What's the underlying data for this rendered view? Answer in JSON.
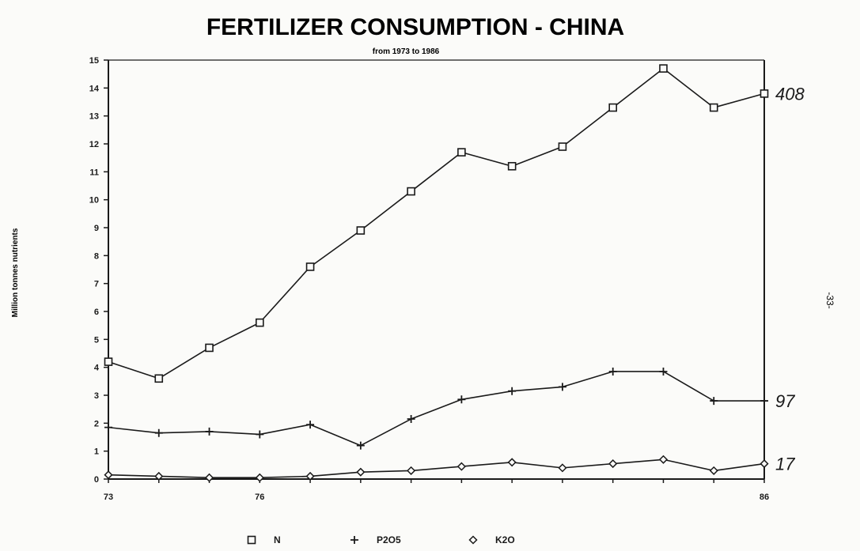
{
  "page_number": "-33-",
  "chart_data": {
    "type": "line",
    "title": "FERTILIZER CONSUMPTION  -  CHINA",
    "subtitle": "from 1973 to 1986",
    "ylabel": "Million tonnes nutrients",
    "xlabel": "",
    "x": [
      1973,
      1974,
      1975,
      1976,
      1977,
      1978,
      1979,
      1980,
      1981,
      1982,
      1983,
      1984,
      1985,
      1986
    ],
    "x_tick_labels": [
      {
        "x": 1973,
        "label": "73"
      },
      {
        "x": 1976,
        "label": "76"
      },
      {
        "x": 1986,
        "label": "86"
      }
    ],
    "xlim": [
      1973,
      1986
    ],
    "ylim": [
      0,
      15
    ],
    "yticks": [
      0,
      1,
      2,
      3,
      4,
      5,
      6,
      7,
      8,
      9,
      10,
      11,
      12,
      13,
      14,
      15
    ],
    "grid": false,
    "legend_position": "bottom",
    "series": [
      {
        "name": "N",
        "marker": "square",
        "values": [
          4.2,
          3.6,
          4.7,
          5.6,
          7.6,
          8.9,
          10.3,
          11.7,
          11.2,
          11.9,
          13.3,
          14.7,
          13.3,
          13.8
        ],
        "end_annotation": "408"
      },
      {
        "name": "P2O5",
        "marker": "plus",
        "values": [
          1.85,
          1.65,
          1.7,
          1.6,
          1.95,
          1.2,
          2.15,
          2.85,
          3.15,
          3.3,
          3.85,
          3.85,
          2.8,
          2.8
        ],
        "end_annotation": "97"
      },
      {
        "name": "K2O",
        "marker": "diamond",
        "values": [
          0.15,
          0.1,
          0.05,
          0.05,
          0.1,
          0.25,
          0.3,
          0.45,
          0.6,
          0.4,
          0.55,
          0.7,
          0.3,
          0.55
        ],
        "end_annotation": "17"
      }
    ],
    "stroke_color": "#1a1a1a"
  }
}
